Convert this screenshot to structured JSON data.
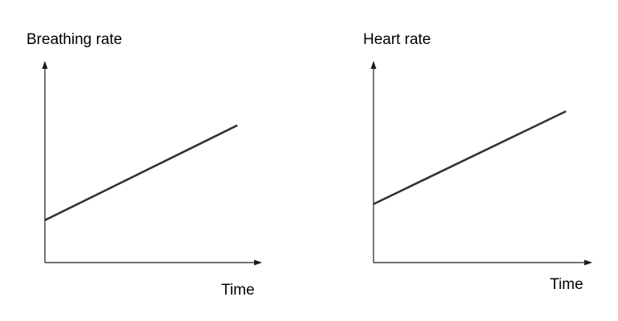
{
  "chart_data": [
    {
      "type": "line",
      "title": "",
      "ylabel": "Breathing rate",
      "xlabel": "Time",
      "xlim": [
        0,
        1
      ],
      "ylim": [
        0,
        1
      ],
      "grid": false,
      "series": [
        {
          "x": [
            0,
            0.87
          ],
          "y": [
            0.21,
            0.68
          ],
          "color": "#333333"
        }
      ]
    },
    {
      "type": "line",
      "title": "",
      "ylabel": "Heart rate",
      "xlabel": "Time",
      "xlim": [
        0,
        1
      ],
      "ylim": [
        0,
        1
      ],
      "grid": false,
      "series": [
        {
          "x": [
            0,
            0.87
          ],
          "y": [
            0.29,
            0.75
          ],
          "color": "#333333"
        }
      ]
    }
  ]
}
